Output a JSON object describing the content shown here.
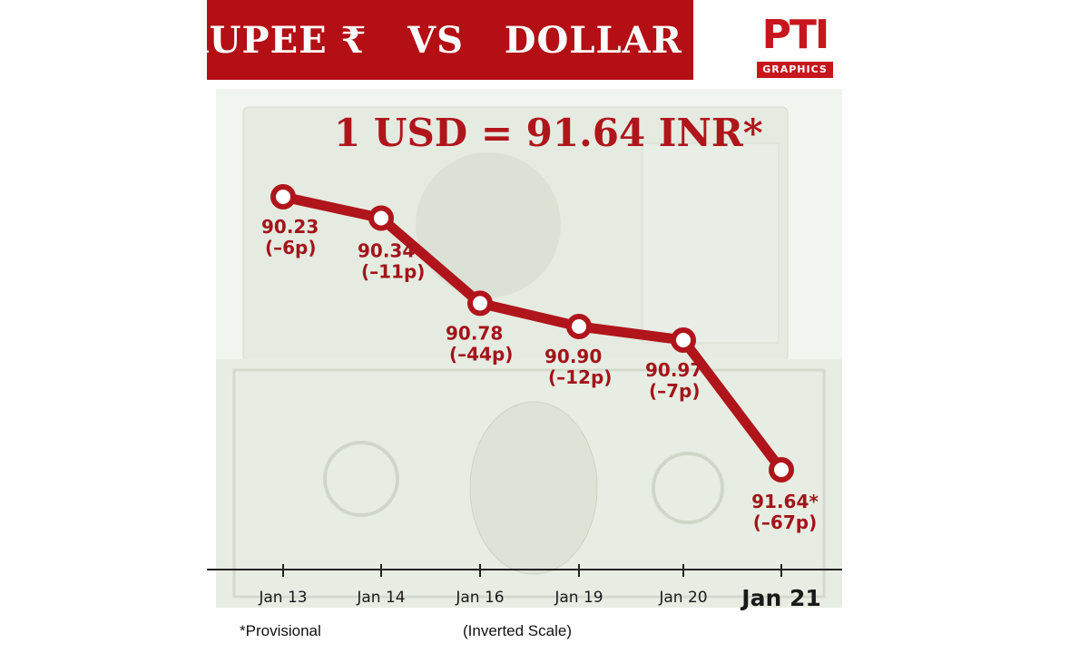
{
  "banner": {
    "title": "RUPEE ₹   VS   DOLLAR $"
  },
  "logo": {
    "mark": "PTI",
    "band": "GRAPHICS"
  },
  "headline": "1 USD = 91.64 INR*",
  "footnote": "*Provisional",
  "scale_note": "(Inverted Scale)",
  "colors": {
    "brand_red": "#b30f14",
    "line_red": "#b0151b",
    "axis": "#222222"
  },
  "chart_data": {
    "type": "line",
    "title": "RUPEE ₹ VS DOLLAR $",
    "subtitle": "1 USD = 91.64 INR*",
    "categories": [
      "Jan 13",
      "Jan 14",
      "Jan 16",
      "Jan 19",
      "Jan 20",
      "Jan 21"
    ],
    "values": [
      90.23,
      90.34,
      90.78,
      90.9,
      90.97,
      91.64
    ],
    "value_labels": [
      "90.23",
      "90.34",
      "90.78",
      "90.90",
      "90.97",
      "91.64*"
    ],
    "change_labels": [
      "(–6p)",
      "(–11p)",
      "(–44p)",
      "(–12p)",
      "(–7p)",
      "(–67p)"
    ],
    "y_inverted": true,
    "grid": false,
    "legend": "none"
  }
}
